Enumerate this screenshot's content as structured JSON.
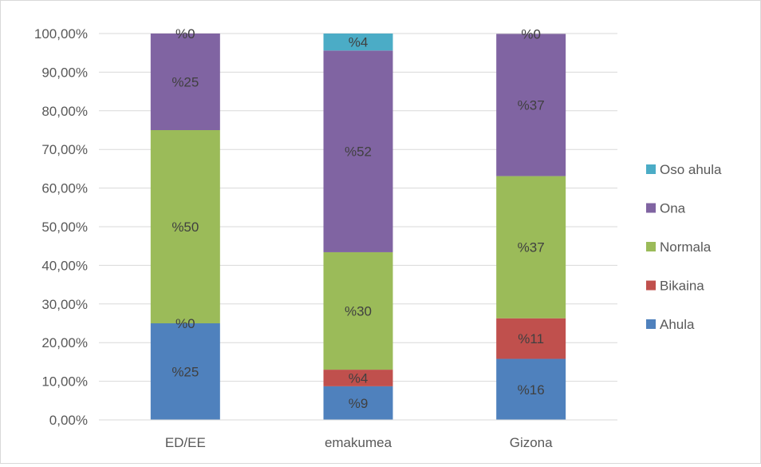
{
  "chart_data": {
    "type": "bar",
    "stacked": true,
    "title": "",
    "xlabel": "",
    "ylabel": "",
    "ylim": [
      0,
      100
    ],
    "y_ticks": [
      "0,00%",
      "10,00%",
      "20,00%",
      "30,00%",
      "40,00%",
      "50,00%",
      "60,00%",
      "70,00%",
      "80,00%",
      "90,00%",
      "100,00%"
    ],
    "categories": [
      "ED/EE",
      "emakumea",
      "Gizona"
    ],
    "grid": true,
    "legend_position": "right",
    "series": [
      {
        "name": "Ahula",
        "color": "#4f81bd",
        "values": [
          25,
          8.7,
          15.8
        ],
        "labels": [
          "%25",
          "%9",
          "%16"
        ]
      },
      {
        "name": "Bikaina",
        "color": "#c0504d",
        "values": [
          0,
          4.3,
          10.5
        ],
        "labels": [
          "%0",
          "%4",
          "%11"
        ]
      },
      {
        "name": "Normala",
        "color": "#9bbb59",
        "values": [
          50,
          30.4,
          36.8
        ],
        "labels": [
          "%50",
          "%30",
          "%37"
        ]
      },
      {
        "name": "Ona",
        "color": "#8064a2",
        "values": [
          25,
          52.2,
          36.8
        ],
        "labels": [
          "%25",
          "%52",
          "%37"
        ]
      },
      {
        "name": "Oso ahula",
        "color": "#4bacc6",
        "values": [
          0,
          4.4,
          0
        ],
        "labels": [
          "%0",
          "%4",
          "%0"
        ]
      }
    ]
  }
}
